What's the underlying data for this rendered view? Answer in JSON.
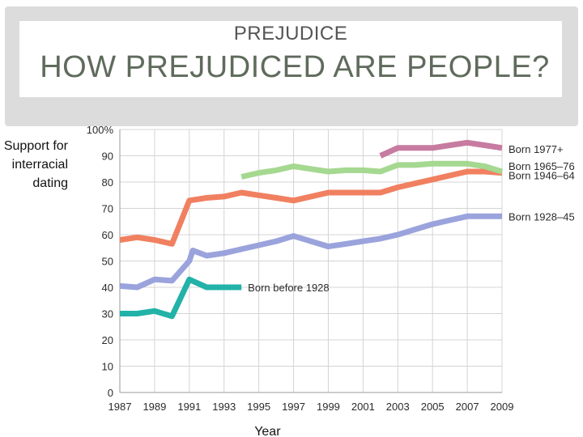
{
  "slide": {
    "subtitle": "PREJUDICE",
    "title": "HOW PREJUDICED ARE PEOPLE?"
  },
  "chart_data": {
    "type": "line",
    "title": "",
    "ylabel_lines": [
      "Support for",
      "interracial",
      "dating"
    ],
    "xlabel": "Year",
    "ylim": [
      0,
      100
    ],
    "xlim": [
      1987,
      2009
    ],
    "y_ticks": [
      "0",
      "10",
      "20",
      "30",
      "40",
      "50",
      "60",
      "70",
      "80",
      "90",
      "100%"
    ],
    "x_ticks": [
      "1987",
      "1989",
      "1991",
      "1993",
      "1995",
      "1997",
      "1999",
      "2001",
      "2003",
      "2005",
      "2007",
      "2009"
    ],
    "grid": true,
    "series": [
      {
        "name": "Born before 1928",
        "color": "#22b2a8",
        "x": [
          1987,
          1988,
          1989,
          1990,
          1991,
          1992,
          1993,
          1994
        ],
        "y": [
          30,
          30,
          31,
          29,
          43,
          40,
          40,
          40
        ]
      },
      {
        "name": "Born 1928–45",
        "color": "#9aa3dc",
        "x": [
          1987,
          1988,
          1989,
          1990,
          1991,
          1991.2,
          1992,
          1993,
          1994,
          1995,
          1996,
          1997,
          1998,
          1999,
          2000,
          2001,
          2002,
          2003,
          2004,
          2005,
          2006,
          2007,
          2008,
          2009
        ],
        "y": [
          40.5,
          40,
          43,
          42.5,
          50,
          54,
          52,
          53,
          54.5,
          56,
          57.5,
          59.5,
          57.5,
          55.5,
          56.5,
          57.5,
          58.5,
          60,
          62,
          64,
          65.5,
          67,
          67,
          67
        ]
      },
      {
        "name": "Born 1946–64",
        "color": "#f08060",
        "x": [
          1987,
          1988,
          1989,
          1990,
          1991,
          1992,
          1993,
          1994,
          1995,
          1996,
          1997,
          1998,
          1999,
          2000,
          2001,
          2002,
          2003,
          2004,
          2005,
          2006,
          2007,
          2008,
          2009
        ],
        "y": [
          58,
          59,
          58,
          56.5,
          73,
          74,
          74.5,
          76,
          75,
          74,
          73,
          74.5,
          76,
          76,
          76,
          76,
          78,
          79.5,
          81,
          82.5,
          84,
          84,
          83.5
        ]
      },
      {
        "name": "Born 1965–76",
        "color": "#a5d890",
        "x": [
          1994,
          1995,
          1996,
          1997,
          1998,
          1999,
          2000,
          2001,
          2002,
          2003,
          2004,
          2005,
          2006,
          2007,
          2008,
          2009
        ],
        "y": [
          82,
          83.5,
          84.5,
          86,
          85,
          84,
          84.5,
          84.5,
          84,
          86.5,
          86.5,
          87,
          87,
          87,
          86,
          84
        ]
      },
      {
        "name": "Born 1977+",
        "color": "#c77ba0",
        "x": [
          2002,
          2003,
          2004,
          2005,
          2006,
          2007,
          2008,
          2009
        ],
        "y": [
          90,
          93,
          93,
          93,
          94,
          95,
          94,
          93
        ]
      }
    ]
  }
}
